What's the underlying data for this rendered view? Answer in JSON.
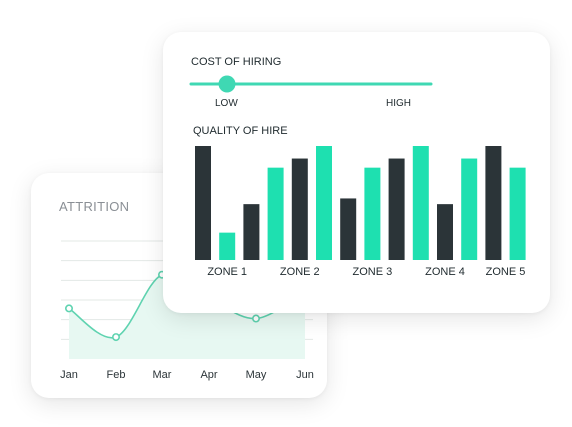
{
  "attrition": {
    "title": "ATTRITION",
    "colors": {
      "line": "#5fd3b0",
      "fill": "#e7f8f2",
      "grid": "#e3e8e6"
    },
    "chart_data": {
      "type": "line",
      "title": "ATTRITION",
      "categories": [
        "Jan",
        "Feb",
        "Mar",
        "Apr",
        "May",
        "Jun"
      ],
      "series": [
        {
          "values": [
            3.0,
            1.3,
            5.0,
            3.6,
            2.4,
            4.0
          ]
        }
      ],
      "ylim": [
        0,
        7
      ],
      "grid": true
    }
  },
  "hiring": {
    "cost_title": "COST OF HIRING",
    "slider": {
      "low_label": "LOW",
      "high_label": "HIGH",
      "value": 0.15,
      "color": "#3fd8b3"
    },
    "quality_title": "QUALITY OF HIRE",
    "colors": {
      "dark": "#2b3438",
      "teal": "#1ee0b0"
    },
    "chart_data": {
      "type": "bar",
      "title": "QUALITY OF HIRE",
      "categories": [
        "ZONE 1",
        "ZONE 2",
        "ZONE 3",
        "ZONE 4",
        "ZONE 5"
      ],
      "bars_per_category": [
        [
          {
            "tone": "dark",
            "value": 100
          },
          {
            "tone": "teal",
            "value": 24
          },
          {
            "tone": "dark",
            "value": 49
          }
        ],
        [
          {
            "tone": "teal",
            "value": 81
          },
          {
            "tone": "dark",
            "value": 89
          },
          {
            "tone": "teal",
            "value": 100
          }
        ],
        [
          {
            "tone": "dark",
            "value": 54
          },
          {
            "tone": "teal",
            "value": 81
          },
          {
            "tone": "dark",
            "value": 89
          }
        ],
        [
          {
            "tone": "teal",
            "value": 100
          },
          {
            "tone": "dark",
            "value": 49
          },
          {
            "tone": "teal",
            "value": 89
          }
        ],
        [
          {
            "tone": "dark",
            "value": 100
          },
          {
            "tone": "teal",
            "value": 81
          }
        ]
      ],
      "ylim": [
        0,
        100
      ]
    }
  }
}
